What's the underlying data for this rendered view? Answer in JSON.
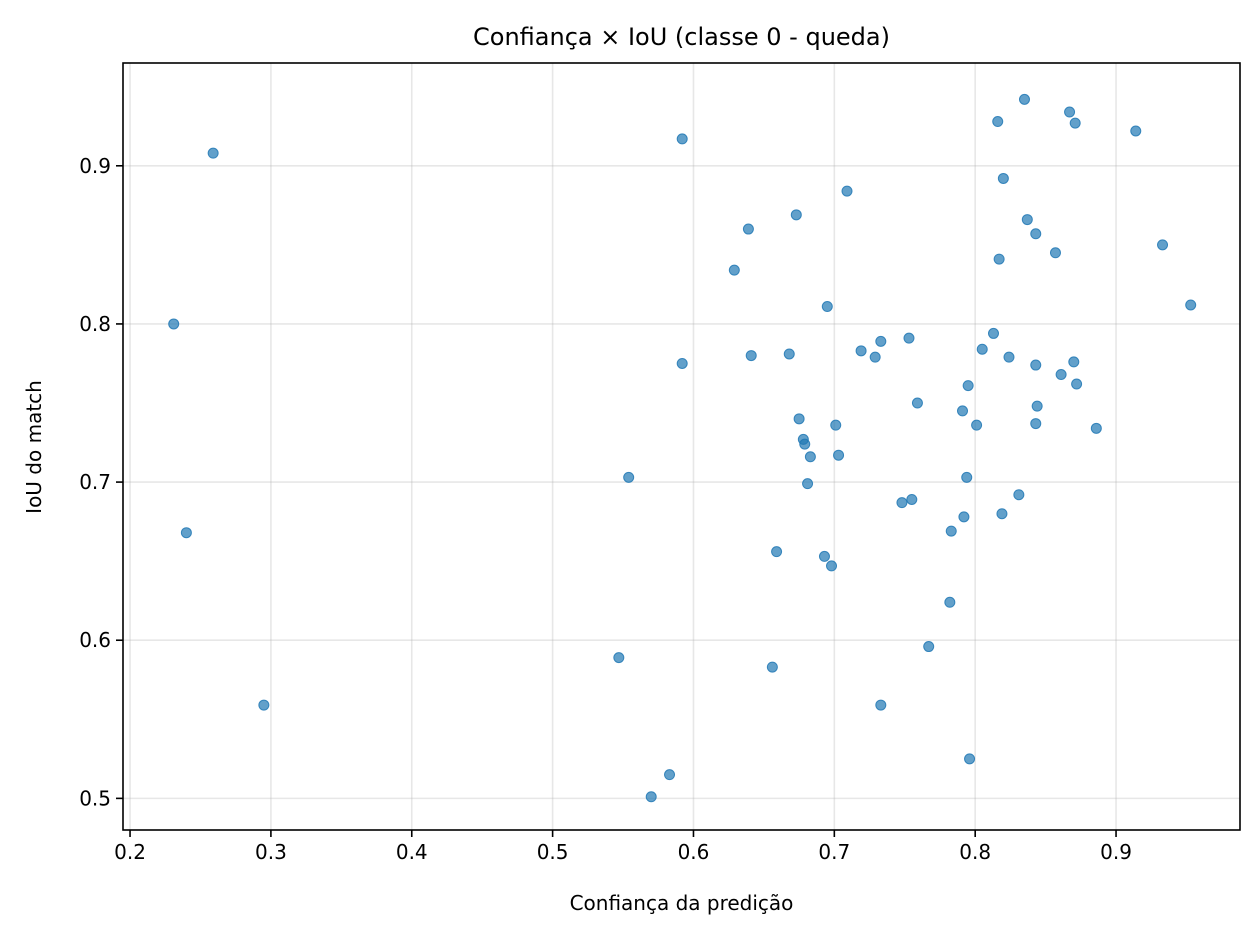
{
  "chart_data": {
    "type": "scatter",
    "title": "Confiança × IoU (classe 0 - queda)",
    "xlabel": "Confiança da predição",
    "ylabel": "IoU do match",
    "xlim": [
      0.195,
      0.988
    ],
    "ylim": [
      0.48,
      0.965
    ],
    "xticks": [
      0.2,
      0.3,
      0.4,
      0.5,
      0.6,
      0.7,
      0.8,
      0.9
    ],
    "yticks": [
      0.5,
      0.6,
      0.7,
      0.8,
      0.9
    ],
    "grid": true,
    "marker_color": "#1f77b4",
    "points": [
      [
        0.231,
        0.8
      ],
      [
        0.24,
        0.668
      ],
      [
        0.259,
        0.908
      ],
      [
        0.295,
        0.559
      ],
      [
        0.547,
        0.589
      ],
      [
        0.554,
        0.703
      ],
      [
        0.57,
        0.501
      ],
      [
        0.583,
        0.515
      ],
      [
        0.592,
        0.917
      ],
      [
        0.592,
        0.775
      ],
      [
        0.629,
        0.834
      ],
      [
        0.639,
        0.86
      ],
      [
        0.641,
        0.78
      ],
      [
        0.656,
        0.583
      ],
      [
        0.659,
        0.656
      ],
      [
        0.668,
        0.781
      ],
      [
        0.673,
        0.869
      ],
      [
        0.675,
        0.74
      ],
      [
        0.678,
        0.727
      ],
      [
        0.679,
        0.724
      ],
      [
        0.681,
        0.699
      ],
      [
        0.683,
        0.716
      ],
      [
        0.693,
        0.653
      ],
      [
        0.695,
        0.811
      ],
      [
        0.698,
        0.647
      ],
      [
        0.701,
        0.736
      ],
      [
        0.703,
        0.717
      ],
      [
        0.709,
        0.884
      ],
      [
        0.719,
        0.783
      ],
      [
        0.729,
        0.779
      ],
      [
        0.733,
        0.789
      ],
      [
        0.733,
        0.559
      ],
      [
        0.748,
        0.687
      ],
      [
        0.753,
        0.791
      ],
      [
        0.755,
        0.689
      ],
      [
        0.759,
        0.75
      ],
      [
        0.767,
        0.596
      ],
      [
        0.782,
        0.624
      ],
      [
        0.783,
        0.669
      ],
      [
        0.791,
        0.745
      ],
      [
        0.792,
        0.678
      ],
      [
        0.794,
        0.703
      ],
      [
        0.795,
        0.761
      ],
      [
        0.796,
        0.525
      ],
      [
        0.801,
        0.736
      ],
      [
        0.805,
        0.784
      ],
      [
        0.813,
        0.794
      ],
      [
        0.816,
        0.928
      ],
      [
        0.817,
        0.841
      ],
      [
        0.819,
        0.68
      ],
      [
        0.82,
        0.892
      ],
      [
        0.824,
        0.779
      ],
      [
        0.831,
        0.692
      ],
      [
        0.835,
        0.942
      ],
      [
        0.837,
        0.866
      ],
      [
        0.843,
        0.737
      ],
      [
        0.843,
        0.857
      ],
      [
        0.843,
        0.774
      ],
      [
        0.844,
        0.748
      ],
      [
        0.857,
        0.845
      ],
      [
        0.861,
        0.768
      ],
      [
        0.867,
        0.934
      ],
      [
        0.87,
        0.776
      ],
      [
        0.871,
        0.927
      ],
      [
        0.872,
        0.762
      ],
      [
        0.886,
        0.734
      ],
      [
        0.914,
        0.922
      ],
      [
        0.933,
        0.85
      ],
      [
        0.953,
        0.812
      ]
    ]
  }
}
